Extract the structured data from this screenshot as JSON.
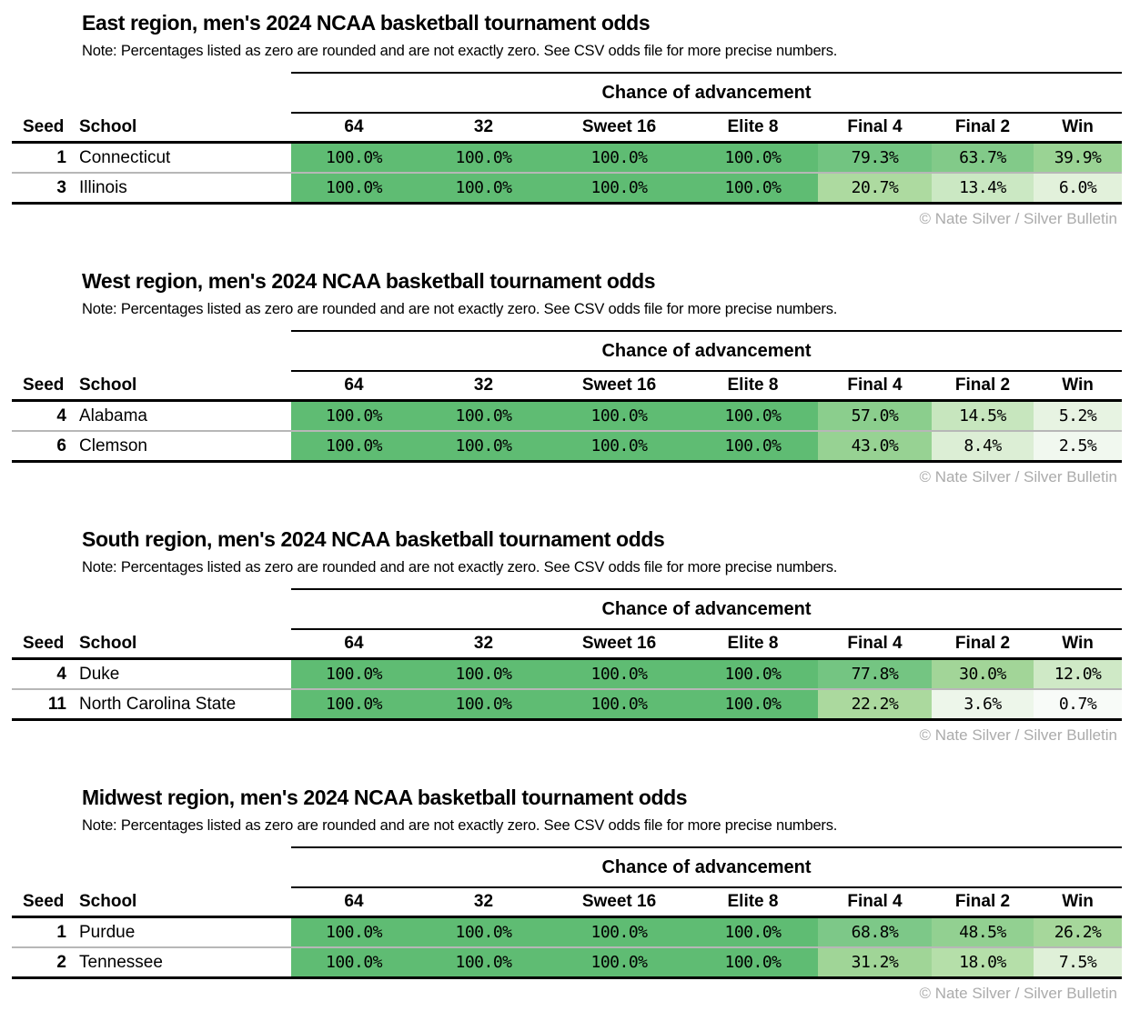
{
  "note": "Note: Percentages listed as zero are rounded and are not exactly zero. See CSV odds file for more precise numbers.",
  "advancement_label": "Chance of advancement",
  "copyright": "© Nate Silver / Silver Bulletin",
  "columns": [
    "Seed",
    "School",
    "64",
    "32",
    "Sweet 16",
    "Elite 8",
    "Final 4",
    "Final 2",
    "Win"
  ],
  "colors": {
    "full_green": "#5FBC73",
    "rule_black": "#000000",
    "row_separator_gray": "#B7B7B7",
    "copyright_gray": "#ABABAB"
  },
  "tables": [
    {
      "region": "East",
      "title": "East region, men's 2024 NCAA basketball tournament odds",
      "rows": [
        {
          "seed": "1",
          "school": "Connecticut",
          "values": [
            "100.0%",
            "100.0%",
            "100.0%",
            "100.0%",
            "79.3%",
            "63.7%",
            "39.9%"
          ],
          "colors": [
            "#5FBC73",
            "#5FBC73",
            "#5FBC73",
            "#5FBC73",
            "#72C481",
            "#82CA89",
            "#9AD394"
          ]
        },
        {
          "seed": "3",
          "school": "Illinois",
          "values": [
            "100.0%",
            "100.0%",
            "100.0%",
            "100.0%",
            "20.7%",
            "13.4%",
            "6.0%"
          ],
          "colors": [
            "#5FBC73",
            "#5FBC73",
            "#5FBC73",
            "#5FBC73",
            "#ADDAA0",
            "#CBE8C3",
            "#E2F1DB"
          ]
        }
      ]
    },
    {
      "region": "West",
      "title": "West region, men's 2024 NCAA basketball tournament odds",
      "rows": [
        {
          "seed": "4",
          "school": "Alabama",
          "values": [
            "100.0%",
            "100.0%",
            "100.0%",
            "100.0%",
            "57.0%",
            "14.5%",
            "5.2%"
          ],
          "colors": [
            "#5FBC73",
            "#5FBC73",
            "#5FBC73",
            "#5FBC73",
            "#8BCE8D",
            "#C7E6BE",
            "#E7F3E2"
          ]
        },
        {
          "seed": "6",
          "school": "Clemson",
          "values": [
            "100.0%",
            "100.0%",
            "100.0%",
            "100.0%",
            "43.0%",
            "8.4%",
            "2.5%"
          ],
          "colors": [
            "#5FBC73",
            "#5FBC73",
            "#5FBC73",
            "#5FBC73",
            "#97D293",
            "#DCEED5",
            "#F1F8EF"
          ]
        }
      ]
    },
    {
      "region": "South",
      "title": "South region, men's 2024 NCAA basketball tournament odds",
      "rows": [
        {
          "seed": "4",
          "school": "Duke",
          "values": [
            "100.0%",
            "100.0%",
            "100.0%",
            "100.0%",
            "77.8%",
            "30.0%",
            "12.0%"
          ],
          "colors": [
            "#5FBC73",
            "#5FBC73",
            "#5FBC73",
            "#5FBC73",
            "#74C582",
            "#A2D598",
            "#CFE9C6"
          ]
        },
        {
          "seed": "11",
          "school": "North Carolina State",
          "values": [
            "100.0%",
            "100.0%",
            "100.0%",
            "100.0%",
            "22.2%",
            "3.6%",
            "0.7%"
          ],
          "colors": [
            "#5FBC73",
            "#5FBC73",
            "#5FBC73",
            "#5FBC73",
            "#ABD99E",
            "#EDF6EA",
            "#F8FBF8"
          ]
        }
      ]
    },
    {
      "region": "Midwest",
      "title": "Midwest region, men's 2024 NCAA basketball tournament odds",
      "rows": [
        {
          "seed": "1",
          "school": "Purdue",
          "values": [
            "100.0%",
            "100.0%",
            "100.0%",
            "100.0%",
            "68.8%",
            "48.5%",
            "26.2%"
          ],
          "colors": [
            "#5FBC73",
            "#5FBC73",
            "#5FBC73",
            "#5FBC73",
            "#7DC888",
            "#92D091",
            "#A6D79B"
          ]
        },
        {
          "seed": "2",
          "school": "Tennessee",
          "values": [
            "100.0%",
            "100.0%",
            "100.0%",
            "100.0%",
            "31.2%",
            "18.0%",
            "7.5%"
          ],
          "colors": [
            "#5FBC73",
            "#5FBC73",
            "#5FBC73",
            "#5FBC73",
            "#A0D597",
            "#B5DFA9",
            "#DFF0D8"
          ]
        }
      ]
    }
  ],
  "chart_data": [
    {
      "type": "table",
      "title": "East region, men's 2024 NCAA basketball tournament odds",
      "subtitle": "Note: Percentages listed as zero are rounded and are not exactly zero. See CSV odds file for more precise numbers.",
      "group_header": "Chance of advancement",
      "columns": [
        "Seed",
        "School",
        "64",
        "32",
        "Sweet 16",
        "Elite 8",
        "Final 4",
        "Final 2",
        "Win"
      ],
      "rows": [
        [
          1,
          "Connecticut",
          100.0,
          100.0,
          100.0,
          100.0,
          79.3,
          63.7,
          39.9
        ],
        [
          3,
          "Illinois",
          100.0,
          100.0,
          100.0,
          100.0,
          20.7,
          13.4,
          6.0
        ]
      ],
      "units": "percent",
      "credit": "© Nate Silver / Silver Bulletin"
    },
    {
      "type": "table",
      "title": "West region, men's 2024 NCAA basketball tournament odds",
      "subtitle": "Note: Percentages listed as zero are rounded and are not exactly zero. See CSV odds file for more precise numbers.",
      "group_header": "Chance of advancement",
      "columns": [
        "Seed",
        "School",
        "64",
        "32",
        "Sweet 16",
        "Elite 8",
        "Final 4",
        "Final 2",
        "Win"
      ],
      "rows": [
        [
          4,
          "Alabama",
          100.0,
          100.0,
          100.0,
          100.0,
          57.0,
          14.5,
          5.2
        ],
        [
          6,
          "Clemson",
          100.0,
          100.0,
          100.0,
          100.0,
          43.0,
          8.4,
          2.5
        ]
      ],
      "units": "percent",
      "credit": "© Nate Silver / Silver Bulletin"
    },
    {
      "type": "table",
      "title": "South region, men's 2024 NCAA basketball tournament odds",
      "subtitle": "Note: Percentages listed as zero are rounded and are not exactly zero. See CSV odds file for more precise numbers.",
      "group_header": "Chance of advancement",
      "columns": [
        "Seed",
        "School",
        "64",
        "32",
        "Sweet 16",
        "Elite 8",
        "Final 4",
        "Final 2",
        "Win"
      ],
      "rows": [
        [
          4,
          "Duke",
          100.0,
          100.0,
          100.0,
          100.0,
          77.8,
          30.0,
          12.0
        ],
        [
          11,
          "North Carolina State",
          100.0,
          100.0,
          100.0,
          100.0,
          22.2,
          3.6,
          0.7
        ]
      ],
      "units": "percent",
      "credit": "© Nate Silver / Silver Bulletin"
    },
    {
      "type": "table",
      "title": "Midwest region, men's 2024 NCAA basketball tournament odds",
      "subtitle": "Note: Percentages listed as zero are rounded and are not exactly zero. See CSV odds file for more precise numbers.",
      "group_header": "Chance of advancement",
      "columns": [
        "Seed",
        "School",
        "64",
        "32",
        "Sweet 16",
        "Elite 8",
        "Final 4",
        "Final 2",
        "Win"
      ],
      "rows": [
        [
          1,
          "Purdue",
          100.0,
          100.0,
          100.0,
          100.0,
          68.8,
          48.5,
          26.2
        ],
        [
          2,
          "Tennessee",
          100.0,
          100.0,
          100.0,
          100.0,
          31.2,
          18.0,
          7.5
        ]
      ],
      "units": "percent",
      "credit": "© Nate Silver / Silver Bulletin"
    }
  ]
}
